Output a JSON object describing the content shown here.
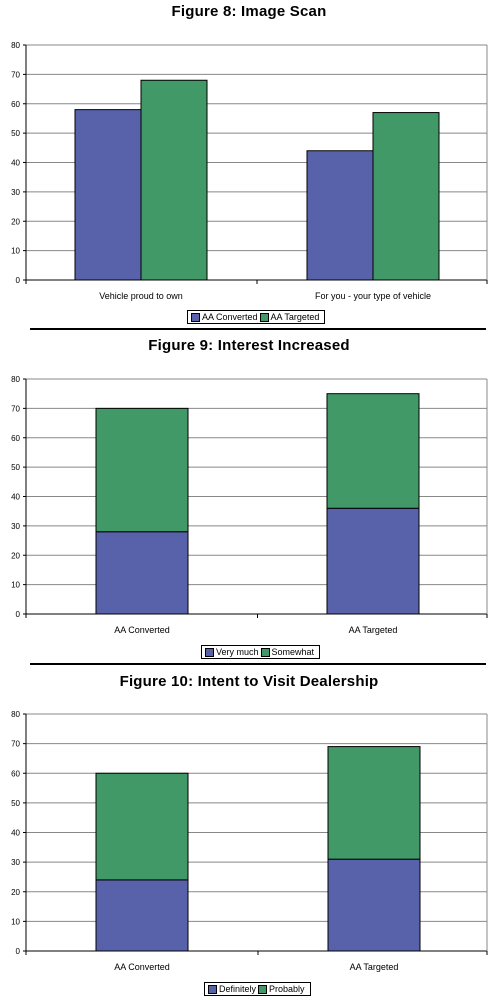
{
  "colors": {
    "blue": "#5862aa",
    "green": "#409966",
    "grid": "#888888"
  },
  "chart_data": [
    {
      "type": "bar",
      "title": "Figure 8: Image Scan",
      "categories": [
        "Vehicle proud to own",
        "For you - your type of vehicle"
      ],
      "series": [
        {
          "name": "AA Converted",
          "values": [
            58,
            44
          ]
        },
        {
          "name": "AA Targeted",
          "values": [
            68,
            57
          ]
        }
      ],
      "ylim": [
        0,
        80
      ],
      "yticks": [
        "0",
        "10",
        "20",
        "30",
        "40",
        "50",
        "60",
        "70",
        "80"
      ],
      "grid": true,
      "legend": "bottom"
    },
    {
      "type": "bar",
      "stacked": true,
      "title": "Figure 9: Interest Increased",
      "categories": [
        "AA Converted",
        "AA Targeted"
      ],
      "series": [
        {
          "name": "Very much",
          "values": [
            28,
            36
          ]
        },
        {
          "name": "Somewhat",
          "values": [
            42,
            39
          ]
        }
      ],
      "ylim": [
        0,
        80
      ],
      "yticks": [
        "0",
        "10",
        "20",
        "30",
        "40",
        "50",
        "60",
        "70",
        "80"
      ],
      "grid": true,
      "legend": "bottom"
    },
    {
      "type": "bar",
      "stacked": true,
      "title": "Figure 10: Intent to Visit Dealership",
      "categories": [
        "AA Converted",
        "AA Targeted"
      ],
      "series": [
        {
          "name": "Definitely",
          "values": [
            24,
            31
          ]
        },
        {
          "name": "Probably",
          "values": [
            36,
            38
          ]
        }
      ],
      "ylim": [
        0,
        80
      ],
      "yticks": [
        "0",
        "10",
        "20",
        "30",
        "40",
        "50",
        "60",
        "70",
        "80"
      ],
      "grid": true,
      "legend": "bottom"
    }
  ]
}
